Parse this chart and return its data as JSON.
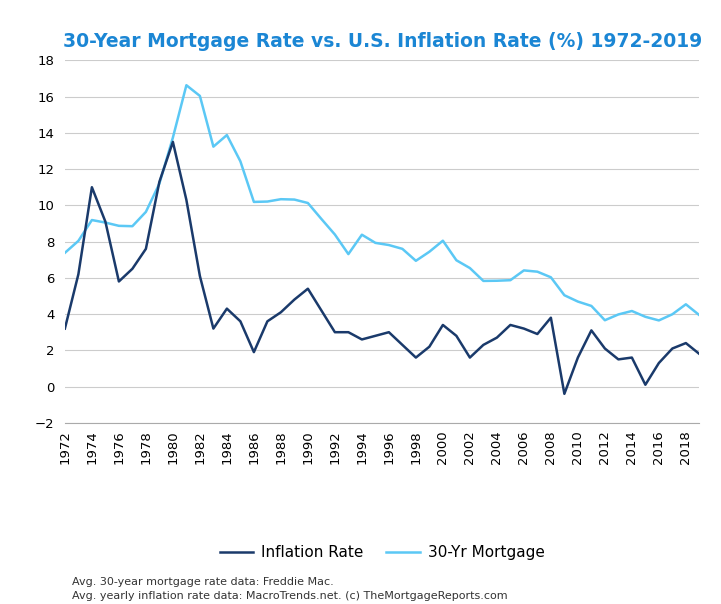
{
  "title": "30-Year Mortgage Rate vs. U.S. Inflation Rate (%) 1972-2019",
  "title_color": "#1B86D4",
  "title_fontsize": 13.5,
  "ylim": [
    -2,
    18
  ],
  "yticks": [
    -2,
    0,
    2,
    4,
    6,
    8,
    10,
    12,
    14,
    16,
    18
  ],
  "background_color": "#FFFFFF",
  "grid_color": "#CCCCCC",
  "footnote_line1": "Avg. 30-year mortgage rate data: Freddie Mac.",
  "footnote_line2": "Avg. yearly inflation rate data: MacroTrends.net. (c) TheMortgageReports.com",
  "years": [
    1972,
    1973,
    1974,
    1975,
    1976,
    1977,
    1978,
    1979,
    1980,
    1981,
    1982,
    1983,
    1984,
    1985,
    1986,
    1987,
    1988,
    1989,
    1990,
    1991,
    1992,
    1993,
    1994,
    1995,
    1996,
    1997,
    1998,
    1999,
    2000,
    2001,
    2002,
    2003,
    2004,
    2005,
    2006,
    2007,
    2008,
    2009,
    2010,
    2011,
    2012,
    2013,
    2014,
    2015,
    2016,
    2017,
    2018,
    2019
  ],
  "inflation": [
    3.2,
    6.2,
    11.0,
    9.1,
    5.8,
    6.5,
    7.6,
    11.3,
    13.5,
    10.3,
    6.1,
    3.2,
    4.3,
    3.6,
    1.9,
    3.6,
    4.1,
    4.8,
    5.4,
    4.2,
    3.0,
    3.0,
    2.6,
    2.8,
    3.0,
    2.3,
    1.6,
    2.2,
    3.4,
    2.8,
    1.6,
    2.3,
    2.7,
    3.4,
    3.2,
    2.9,
    3.8,
    -0.4,
    1.6,
    3.1,
    2.1,
    1.5,
    1.6,
    0.1,
    1.3,
    2.1,
    2.4,
    1.8
  ],
  "mortgage": [
    7.38,
    8.04,
    9.19,
    9.05,
    8.87,
    8.85,
    9.64,
    11.2,
    13.74,
    16.63,
    16.04,
    13.24,
    13.88,
    12.43,
    10.19,
    10.21,
    10.34,
    10.32,
    10.13,
    9.25,
    8.39,
    7.31,
    8.38,
    7.93,
    7.81,
    7.6,
    6.94,
    7.44,
    8.05,
    6.97,
    6.54,
    5.83,
    5.84,
    5.87,
    6.41,
    6.34,
    6.03,
    5.04,
    4.69,
    4.45,
    3.66,
    3.98,
    4.17,
    3.85,
    3.65,
    3.99,
    4.54,
    3.94
  ],
  "inflation_color": "#1A3A6B",
  "mortgage_color": "#5BC8F5",
  "line_width": 1.8,
  "legend_inflation": "Inflation Rate",
  "legend_mortgage": "30-Yr Mortgage",
  "footnote_fontsize": 8.0,
  "tick_fontsize": 9.5
}
